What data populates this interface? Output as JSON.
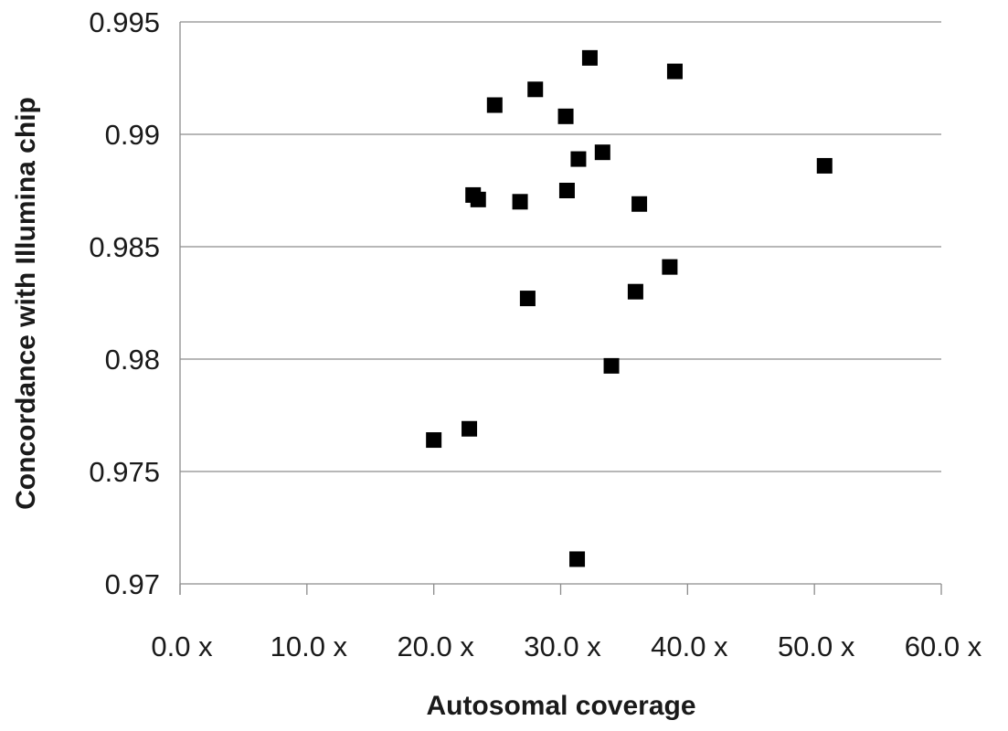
{
  "chart_data": {
    "type": "scatter",
    "title": "",
    "xlabel": "Autosomal coverage",
    "ylabel": "Concordance with Illumina chip",
    "xlim": [
      0,
      60
    ],
    "ylim": [
      0.97,
      0.995
    ],
    "grid": "horizontal",
    "legend": "none",
    "marker": "square",
    "marker_color": "#000000",
    "x_ticks": [
      0,
      10,
      20,
      30,
      40,
      50,
      60
    ],
    "x_tick_labels": [
      "0.0 x",
      "10.0 x",
      "20.0 x",
      "30.0 x",
      "40.0 x",
      "50.0 x",
      "60.0 x"
    ],
    "y_ticks": [
      0.97,
      0.975,
      0.98,
      0.985,
      0.99,
      0.995
    ],
    "y_tick_labels": [
      "0.97",
      "0.975",
      "0.98",
      "0.985",
      "0.99",
      "0.995"
    ],
    "series": [
      {
        "points": [
          {
            "x": 20.0,
            "y": 0.9764
          },
          {
            "x": 22.8,
            "y": 0.9769
          },
          {
            "x": 23.1,
            "y": 0.9873
          },
          {
            "x": 23.5,
            "y": 0.9871
          },
          {
            "x": 24.8,
            "y": 0.9913
          },
          {
            "x": 26.8,
            "y": 0.987
          },
          {
            "x": 27.4,
            "y": 0.9827
          },
          {
            "x": 28.0,
            "y": 0.992
          },
          {
            "x": 30.4,
            "y": 0.9908
          },
          {
            "x": 30.5,
            "y": 0.9875
          },
          {
            "x": 31.4,
            "y": 0.9889
          },
          {
            "x": 31.3,
            "y": 0.9711
          },
          {
            "x": 32.3,
            "y": 0.9934
          },
          {
            "x": 33.3,
            "y": 0.9892
          },
          {
            "x": 34.0,
            "y": 0.9797
          },
          {
            "x": 35.9,
            "y": 0.983
          },
          {
            "x": 36.2,
            "y": 0.9869
          },
          {
            "x": 38.6,
            "y": 0.9841
          },
          {
            "x": 39.0,
            "y": 0.9928
          },
          {
            "x": 50.8,
            "y": 0.9886
          }
        ]
      }
    ]
  }
}
